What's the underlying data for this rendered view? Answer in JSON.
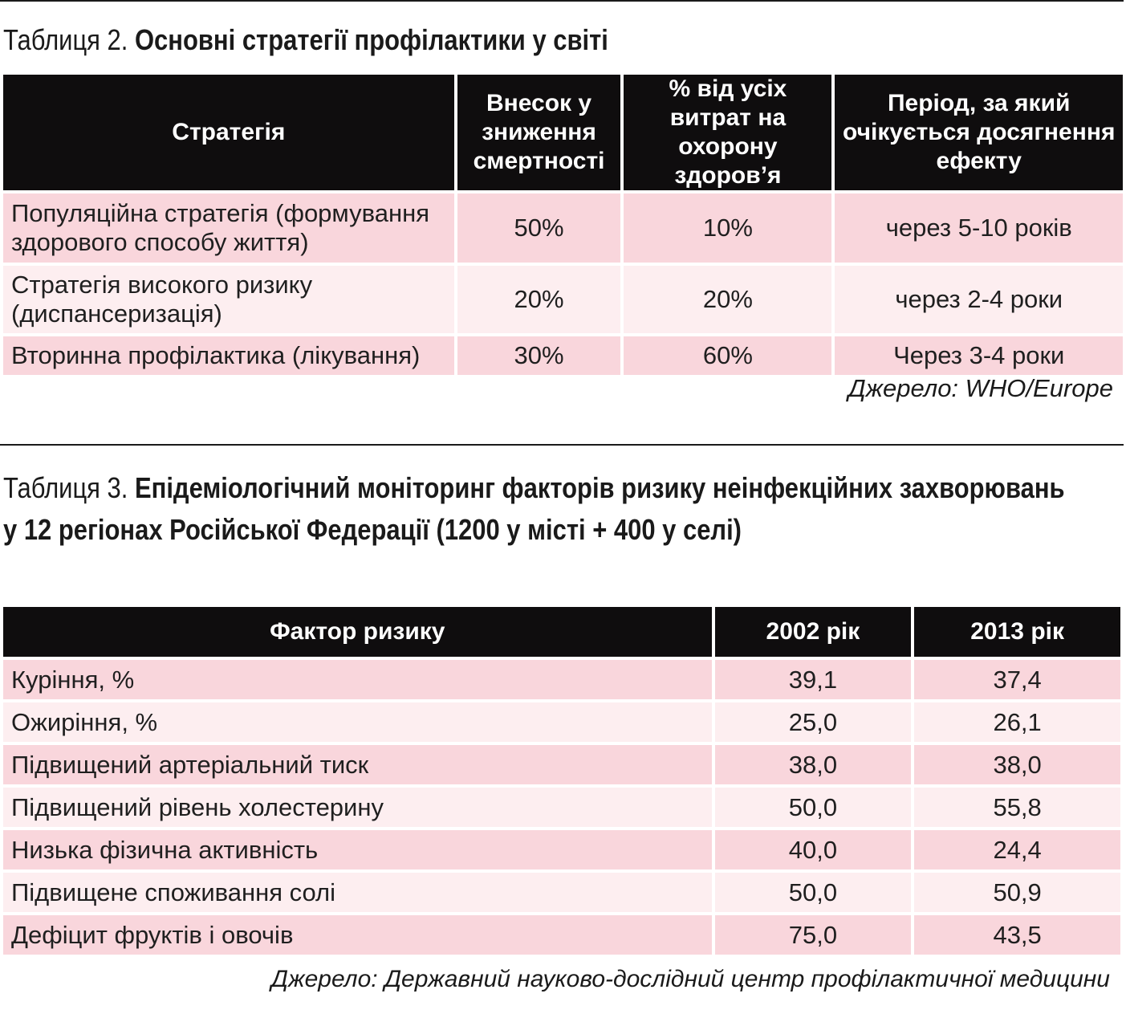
{
  "table2": {
    "caption_num": "Таблиця 2.",
    "caption_title": "Основні стратегії профілактики у світі",
    "headers": [
      "Стратегія",
      "Внесок у зниження смертності",
      "% від усіх витрат на охорону здоров’я",
      "Період, за який очікується досягнення ефекту"
    ],
    "rows": [
      [
        "Популяційна стратегія (формування здорового способу життя)",
        "50%",
        "10%",
        "через 5-10 років"
      ],
      [
        "Стратегія високого ризику (диспансеризація)",
        "20%",
        "20%",
        "через 2-4 роки"
      ],
      [
        "Вторинна профілактика (лікування)",
        "30%",
        "60%",
        "Через 3-4 роки"
      ]
    ],
    "source": "Джерело: WHO/Europe"
  },
  "table3": {
    "caption_num": "Таблиця 3.",
    "caption_title": "Епідеміологічний моніторинг факторів ризику неінфекційних захворювань у 12 регіонах Російської Федерації (1200 у місті + 400 у селі)",
    "headers": [
      "Фактор ризику",
      "2002 рік",
      "2013 рік"
    ],
    "rows": [
      [
        "Куріння, %",
        "39,1",
        "37,4"
      ],
      [
        "Ожиріння, %",
        "25,0",
        "26,1"
      ],
      [
        "Підвищений артеріальний тиск",
        "38,0",
        "38,0"
      ],
      [
        "Підвищений рівень холестерину",
        "50,0",
        "55,8"
      ],
      [
        "Низька фізична активність",
        "40,0",
        "24,4"
      ],
      [
        "Підвищене споживання солі",
        "50,0",
        "50,9"
      ],
      [
        "Дефіцит фруктів і овочів",
        "75,0",
        "43,5"
      ]
    ],
    "source": "Джерело: Державний науково-дослідний центр профілактичної медицини"
  }
}
